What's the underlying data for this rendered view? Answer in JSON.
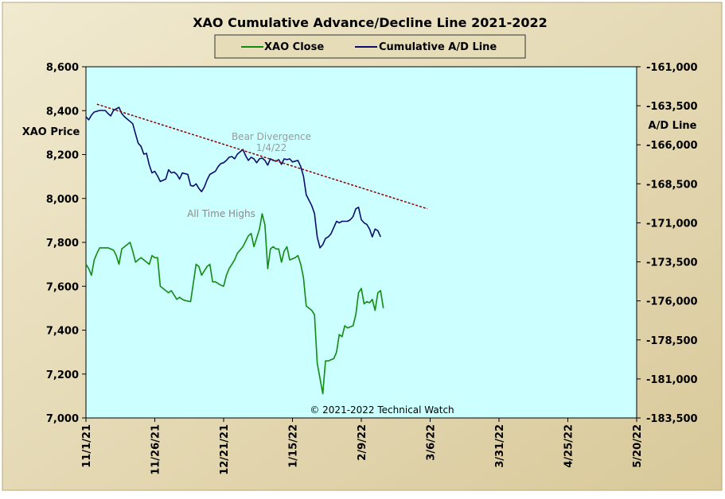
{
  "chart_data": {
    "type": "line",
    "title": "XAO Cumulative Advance/Decline Line 2021-2022",
    "legend": [
      "XAO Close",
      "Cumulative A/D Line"
    ],
    "legend_position": "top-center",
    "y_left_label": "XAO Price",
    "y_right_label": "A/D Line",
    "y_left_range": [
      7000,
      8600
    ],
    "y_right_range": [
      -183500,
      -161000
    ],
    "y_left_ticks": [
      "8,600",
      "8,400",
      "8,200",
      "8,000",
      "7,800",
      "7,600",
      "7,400",
      "7,200",
      "7,000"
    ],
    "y_right_ticks": [
      "-161,000",
      "-163,500",
      "-166,000",
      "-168,500",
      "-171,000",
      "-173,500",
      "-176,000",
      "-178,500",
      "-181,000",
      "-183,500"
    ],
    "x_ticks": [
      "11/1/21",
      "11/26/21",
      "12/21/21",
      "1/15/22",
      "2/9/22",
      "3/6/22",
      "3/31/22",
      "4/25/22",
      "5/20/22"
    ],
    "x_start": "2021-11-01",
    "x_end": "2022-05-20",
    "colors": {
      "xao_close": "#138a13",
      "ad_line": "#0c0c6e",
      "trendline": "#8b0000",
      "plot_bg": "#ccffff",
      "frame_bg": "#e8dcb5"
    },
    "annotations": {
      "bear_divergence_1": "Bear Divergence",
      "bear_divergence_2": "1/4/22",
      "all_time_highs": "All Time Highs",
      "credit": "© 2021-2022  Technical Watch"
    },
    "trendline": {
      "start": [
        "2021-11-05",
        -163400
      ],
      "end": [
        "2022-03-05",
        -170100
      ]
    },
    "series": [
      {
        "name": "XAO Close",
        "axis": "left",
        "points": [
          [
            "2021-11-01",
            7700
          ],
          [
            "2021-11-02",
            7680
          ],
          [
            "2021-11-03",
            7650
          ],
          [
            "2021-11-04",
            7720
          ],
          [
            "2021-11-05",
            7750
          ],
          [
            "2021-11-06",
            7775
          ],
          [
            "2021-11-09",
            7775
          ],
          [
            "2021-11-11",
            7765
          ],
          [
            "2021-11-12",
            7740
          ],
          [
            "2021-11-13",
            7700
          ],
          [
            "2021-11-14",
            7770
          ],
          [
            "2021-11-16",
            7790
          ],
          [
            "2021-11-17",
            7800
          ],
          [
            "2021-11-18",
            7760
          ],
          [
            "2021-11-19",
            7710
          ],
          [
            "2021-11-20",
            7720
          ],
          [
            "2021-11-21",
            7730
          ],
          [
            "2021-11-22",
            7720
          ],
          [
            "2021-11-24",
            7700
          ],
          [
            "2021-11-25",
            7740
          ],
          [
            "2021-11-26",
            7730
          ],
          [
            "2021-11-27",
            7730
          ],
          [
            "2021-11-28",
            7600
          ],
          [
            "2021-11-30",
            7580
          ],
          [
            "2021-12-01",
            7570
          ],
          [
            "2021-12-02",
            7580
          ],
          [
            "2021-12-04",
            7540
          ],
          [
            "2021-12-05",
            7550
          ],
          [
            "2021-12-06",
            7540
          ],
          [
            "2021-12-07",
            7535
          ],
          [
            "2021-12-09",
            7530
          ],
          [
            "2021-12-11",
            7700
          ],
          [
            "2021-12-12",
            7690
          ],
          [
            "2021-12-13",
            7650
          ],
          [
            "2021-12-15",
            7690
          ],
          [
            "2021-12-16",
            7700
          ],
          [
            "2021-12-17",
            7620
          ],
          [
            "2021-12-18",
            7620
          ],
          [
            "2021-12-20",
            7605
          ],
          [
            "2021-12-21",
            7600
          ],
          [
            "2021-12-22",
            7650
          ],
          [
            "2021-12-23",
            7680
          ],
          [
            "2021-12-24",
            7700
          ],
          [
            "2021-12-25",
            7720
          ],
          [
            "2021-12-26",
            7750
          ],
          [
            "2021-12-28",
            7780
          ],
          [
            "2021-12-30",
            7830
          ],
          [
            "2021-12-31",
            7840
          ],
          [
            "2022-01-01",
            7780
          ],
          [
            "2022-01-03",
            7860
          ],
          [
            "2022-01-04",
            7930
          ],
          [
            "2022-01-05",
            7880
          ],
          [
            "2022-01-06",
            7680
          ],
          [
            "2022-01-07",
            7770
          ],
          [
            "2022-01-08",
            7780
          ],
          [
            "2022-01-09",
            7770
          ],
          [
            "2022-01-10",
            7770
          ],
          [
            "2022-01-11",
            7710
          ],
          [
            "2022-01-12",
            7760
          ],
          [
            "2022-01-13",
            7780
          ],
          [
            "2022-01-14",
            7720
          ],
          [
            "2022-01-16",
            7730
          ],
          [
            "2022-01-17",
            7740
          ],
          [
            "2022-01-18",
            7700
          ],
          [
            "2022-01-19",
            7640
          ],
          [
            "2022-01-20",
            7510
          ],
          [
            "2022-01-21",
            7500
          ],
          [
            "2022-01-22",
            7490
          ],
          [
            "2022-01-23",
            7470
          ],
          [
            "2022-01-24",
            7250
          ],
          [
            "2022-01-25",
            7180
          ],
          [
            "2022-01-26",
            7110
          ],
          [
            "2022-01-27",
            7260
          ],
          [
            "2022-01-28",
            7260
          ],
          [
            "2022-01-29",
            7265
          ],
          [
            "2022-01-30",
            7270
          ],
          [
            "2022-01-31",
            7300
          ],
          [
            "2022-02-01",
            7380
          ],
          [
            "2022-02-02",
            7370
          ],
          [
            "2022-02-03",
            7420
          ],
          [
            "2022-02-04",
            7410
          ],
          [
            "2022-02-06",
            7420
          ],
          [
            "2022-02-07",
            7470
          ],
          [
            "2022-02-08",
            7570
          ],
          [
            "2022-02-09",
            7590
          ],
          [
            "2022-02-10",
            7520
          ],
          [
            "2022-02-11",
            7530
          ],
          [
            "2022-02-12",
            7525
          ],
          [
            "2022-02-13",
            7540
          ],
          [
            "2022-02-14",
            7490
          ],
          [
            "2022-02-15",
            7570
          ],
          [
            "2022-02-16",
            7580
          ],
          [
            "2022-02-17",
            7500
          ]
        ]
      },
      {
        "name": "Cumulative A/D Line",
        "axis": "right",
        "points": [
          [
            "2021-11-01",
            -164200
          ],
          [
            "2021-11-02",
            -164400
          ],
          [
            "2021-11-03",
            -164100
          ],
          [
            "2021-11-04",
            -163900
          ],
          [
            "2021-11-06",
            -163800
          ],
          [
            "2021-11-08",
            -163800
          ],
          [
            "2021-11-09",
            -164000
          ],
          [
            "2021-11-10",
            -164150
          ],
          [
            "2021-11-11",
            -163800
          ],
          [
            "2021-11-12",
            -163700
          ],
          [
            "2021-11-13",
            -163600
          ],
          [
            "2021-11-14",
            -164000
          ],
          [
            "2021-11-15",
            -164200
          ],
          [
            "2021-11-17",
            -164500
          ],
          [
            "2021-11-18",
            -164650
          ],
          [
            "2021-11-19",
            -165300
          ],
          [
            "2021-11-20",
            -165900
          ],
          [
            "2021-11-21",
            -166100
          ],
          [
            "2021-11-22",
            -166600
          ],
          [
            "2021-11-23",
            -166550
          ],
          [
            "2021-11-24",
            -167300
          ],
          [
            "2021-11-25",
            -167800
          ],
          [
            "2021-11-26",
            -167700
          ],
          [
            "2021-11-27",
            -168000
          ],
          [
            "2021-11-28",
            -168350
          ],
          [
            "2021-11-30",
            -168200
          ],
          [
            "2021-12-01",
            -167600
          ],
          [
            "2021-12-02",
            -167800
          ],
          [
            "2021-12-03",
            -167750
          ],
          [
            "2021-12-04",
            -167900
          ],
          [
            "2021-12-05",
            -168200
          ],
          [
            "2021-12-06",
            -167800
          ],
          [
            "2021-12-08",
            -167900
          ],
          [
            "2021-12-09",
            -168600
          ],
          [
            "2021-12-10",
            -168650
          ],
          [
            "2021-12-11",
            -168500
          ],
          [
            "2021-12-12",
            -168800
          ],
          [
            "2021-12-13",
            -169000
          ],
          [
            "2021-12-14",
            -168700
          ],
          [
            "2021-12-15",
            -168250
          ],
          [
            "2021-12-16",
            -167900
          ],
          [
            "2021-12-18",
            -167700
          ],
          [
            "2021-12-19",
            -167400
          ],
          [
            "2021-12-20",
            -167200
          ],
          [
            "2021-12-21",
            -167150
          ],
          [
            "2021-12-22",
            -167000
          ],
          [
            "2021-12-23",
            -166800
          ],
          [
            "2021-12-24",
            -166750
          ],
          [
            "2021-12-25",
            -166900
          ],
          [
            "2021-12-26",
            -166600
          ],
          [
            "2021-12-28",
            -166300
          ],
          [
            "2021-12-29",
            -166700
          ],
          [
            "2021-12-30",
            -167000
          ],
          [
            "2021-12-31",
            -166800
          ],
          [
            "2022-01-01",
            -166900
          ],
          [
            "2022-01-02",
            -167150
          ],
          [
            "2022-01-03",
            -166900
          ],
          [
            "2022-01-04",
            -166850
          ],
          [
            "2022-01-05",
            -167000
          ],
          [
            "2022-01-06",
            -167300
          ],
          [
            "2022-01-07",
            -166900
          ],
          [
            "2022-01-08",
            -167000
          ],
          [
            "2022-01-09",
            -167050
          ],
          [
            "2022-01-10",
            -166950
          ],
          [
            "2022-01-11",
            -167250
          ],
          [
            "2022-01-12",
            -166900
          ],
          [
            "2022-01-13",
            -166950
          ],
          [
            "2022-01-14",
            -166900
          ],
          [
            "2022-01-15",
            -167100
          ],
          [
            "2022-01-16",
            -167050
          ],
          [
            "2022-01-17",
            -167000
          ],
          [
            "2022-01-18",
            -167400
          ],
          [
            "2022-01-19",
            -168000
          ],
          [
            "2022-01-20",
            -169200
          ],
          [
            "2022-01-22",
            -169900
          ],
          [
            "2022-01-23",
            -170400
          ],
          [
            "2022-01-24",
            -171900
          ],
          [
            "2022-01-25",
            -172600
          ],
          [
            "2022-01-26",
            -172400
          ],
          [
            "2022-01-27",
            -172000
          ],
          [
            "2022-01-28",
            -171900
          ],
          [
            "2022-01-29",
            -171700
          ],
          [
            "2022-01-31",
            -170900
          ],
          [
            "2022-02-01",
            -171000
          ],
          [
            "2022-02-02",
            -170900
          ],
          [
            "2022-02-04",
            -170900
          ],
          [
            "2022-02-05",
            -170800
          ],
          [
            "2022-02-06",
            -170600
          ],
          [
            "2022-02-07",
            -170100
          ],
          [
            "2022-02-08",
            -170000
          ],
          [
            "2022-02-09",
            -170800
          ],
          [
            "2022-02-10",
            -171000
          ],
          [
            "2022-02-11",
            -171100
          ],
          [
            "2022-02-12",
            -171400
          ],
          [
            "2022-02-13",
            -171900
          ],
          [
            "2022-02-14",
            -171400
          ],
          [
            "2022-02-15",
            -171500
          ],
          [
            "2022-02-16",
            -171900
          ]
        ]
      }
    ]
  }
}
